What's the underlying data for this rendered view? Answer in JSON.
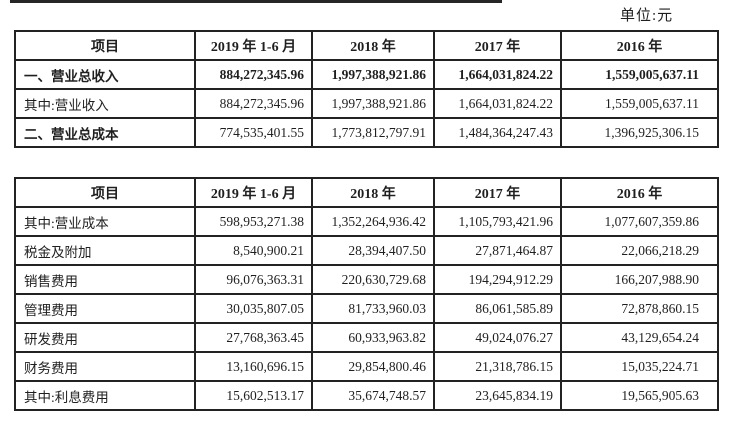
{
  "unit_label": "单位:元",
  "table1": {
    "headers": [
      "项目",
      "2019 年 1-6 月",
      "2018 年",
      "2017 年",
      "2016 年"
    ],
    "rows": [
      {
        "label": "一、营业总收入",
        "values": [
          "884,272,345.96",
          "1,997,388,921.86",
          "1,664,031,824.22",
          "1,559,005,637.11"
        ],
        "bold_label": true,
        "bold_values": true
      },
      {
        "label": "其中:营业收入",
        "values": [
          "884,272,345.96",
          "1,997,388,921.86",
          "1,664,031,824.22",
          "1,559,005,637.11"
        ],
        "bold_label": false,
        "bold_values": false
      },
      {
        "label": "二、营业总成本",
        "values": [
          "774,535,401.55",
          "1,773,812,797.91",
          "1,484,364,247.43",
          "1,396,925,306.15"
        ],
        "bold_label": true,
        "bold_values": false
      }
    ]
  },
  "table2": {
    "headers": [
      "项目",
      "2019 年 1-6 月",
      "2018 年",
      "2017 年",
      "2016 年"
    ],
    "rows": [
      {
        "label": "其中:营业成本",
        "values": [
          "598,953,271.38",
          "1,352,264,936.42",
          "1,105,793,421.96",
          "1,077,607,359.86"
        ],
        "bold_label": false,
        "bold_values": false
      },
      {
        "label": "税金及附加",
        "values": [
          "8,540,900.21",
          "28,394,407.50",
          "27,871,464.87",
          "22,066,218.29"
        ],
        "bold_label": false,
        "bold_values": false
      },
      {
        "label": "销售费用",
        "values": [
          "96,076,363.31",
          "220,630,729.68",
          "194,294,912.29",
          "166,207,988.90"
        ],
        "bold_label": false,
        "bold_values": false
      },
      {
        "label": "管理费用",
        "values": [
          "30,035,807.05",
          "81,733,960.03",
          "86,061,585.89",
          "72,878,860.15"
        ],
        "bold_label": false,
        "bold_values": false
      },
      {
        "label": "研发费用",
        "values": [
          "27,768,363.45",
          "60,933,963.82",
          "49,024,076.27",
          "43,129,654.24"
        ],
        "bold_label": false,
        "bold_values": false
      },
      {
        "label": "财务费用",
        "values": [
          "13,160,696.15",
          "29,854,800.46",
          "21,318,786.15",
          "15,035,224.71"
        ],
        "bold_label": false,
        "bold_values": false
      },
      {
        "label": "其中:利息费用",
        "values": [
          "15,602,513.17",
          "35,674,748.57",
          "23,645,834.19",
          "19,565,905.63"
        ],
        "bold_label": false,
        "bold_values": false
      }
    ]
  }
}
